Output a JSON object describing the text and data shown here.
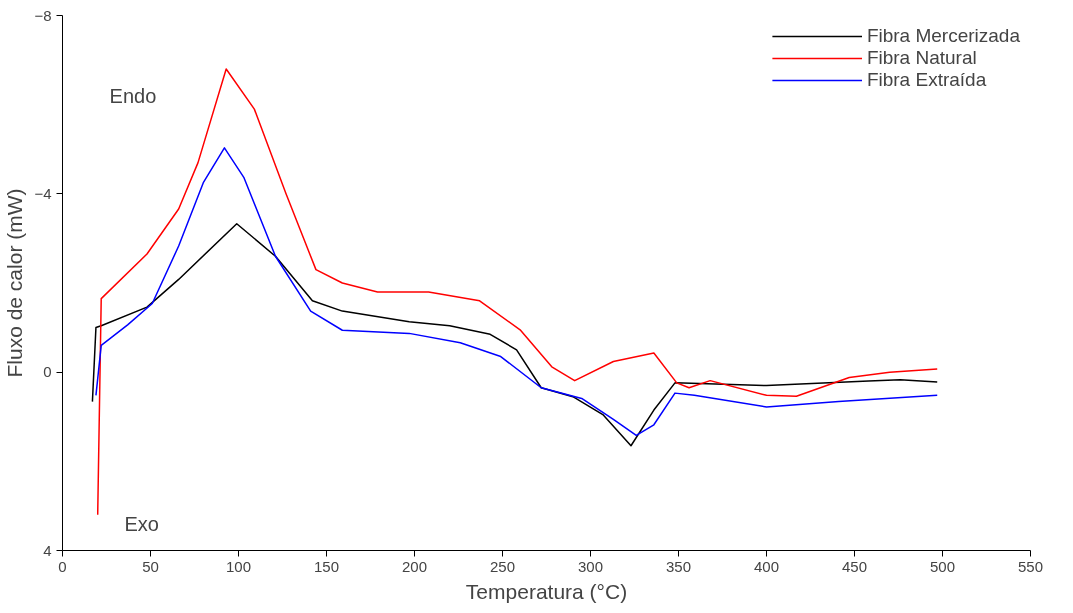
{
  "chart_data": {
    "type": "line",
    "xlabel": "Temperatura (°C)",
    "ylabel": "Fluxo de calor (mW)",
    "annotations": [
      "Endo",
      "Exo"
    ],
    "xlim": [
      0,
      550
    ],
    "xticks": [
      0,
      50,
      100,
      150,
      200,
      250,
      300,
      350,
      400,
      450,
      500,
      550
    ],
    "ylim": [
      4,
      -8
    ],
    "yticks": [
      -8,
      -4,
      0,
      4
    ],
    "grid": false,
    "legend": "top right",
    "series": [
      {
        "name": "Fibra Mercerizada",
        "color": "#000000",
        "x": [
          17,
          19,
          22,
          48,
          66,
          99,
          121,
          142,
          159,
          197,
          220,
          243,
          258,
          272,
          290,
          307,
          323,
          336,
          348,
          400,
          458,
          476,
          497
        ],
        "values": [
          0.66,
          -1.0,
          -1.04,
          -1.46,
          -2.08,
          -3.33,
          -2.6,
          -1.6,
          -1.37,
          -1.13,
          -1.04,
          -0.85,
          -0.5,
          0.35,
          0.55,
          0.95,
          1.65,
          0.85,
          0.24,
          0.3,
          0.2,
          0.17,
          0.22
        ]
      },
      {
        "name": "Fibra Natural",
        "color": "#ff0000",
        "x": [
          20,
          22,
          48,
          66,
          77,
          93,
          109,
          127,
          144,
          159,
          179,
          208,
          237,
          260,
          278,
          291,
          313,
          336,
          349,
          356,
          368,
          400,
          417,
          447,
          470,
          497
        ],
        "values": [
          3.2,
          -1.65,
          -2.65,
          -3.66,
          -4.7,
          -6.8,
          -5.9,
          -4.0,
          -2.3,
          -2.0,
          -1.8,
          -1.8,
          -1.6,
          -0.95,
          -0.12,
          0.19,
          -0.24,
          -0.43,
          0.24,
          0.35,
          0.19,
          0.52,
          0.54,
          0.12,
          0.0,
          -0.07
        ]
      },
      {
        "name": "Fibra Extraída",
        "color": "#0000ff",
        "x": [
          19,
          22,
          37,
          51,
          66,
          80,
          92,
          103,
          121,
          141,
          159,
          197,
          226,
          249,
          272,
          295,
          313,
          326,
          336,
          348,
          359,
          400,
          441,
          497
        ],
        "values": [
          0.52,
          -0.6,
          -1.06,
          -1.54,
          -2.83,
          -4.25,
          -5.03,
          -4.37,
          -2.6,
          -1.37,
          -0.94,
          -0.87,
          -0.66,
          -0.35,
          0.35,
          0.59,
          1.06,
          1.42,
          1.18,
          0.47,
          0.52,
          0.78,
          0.66,
          0.52
        ]
      }
    ]
  }
}
